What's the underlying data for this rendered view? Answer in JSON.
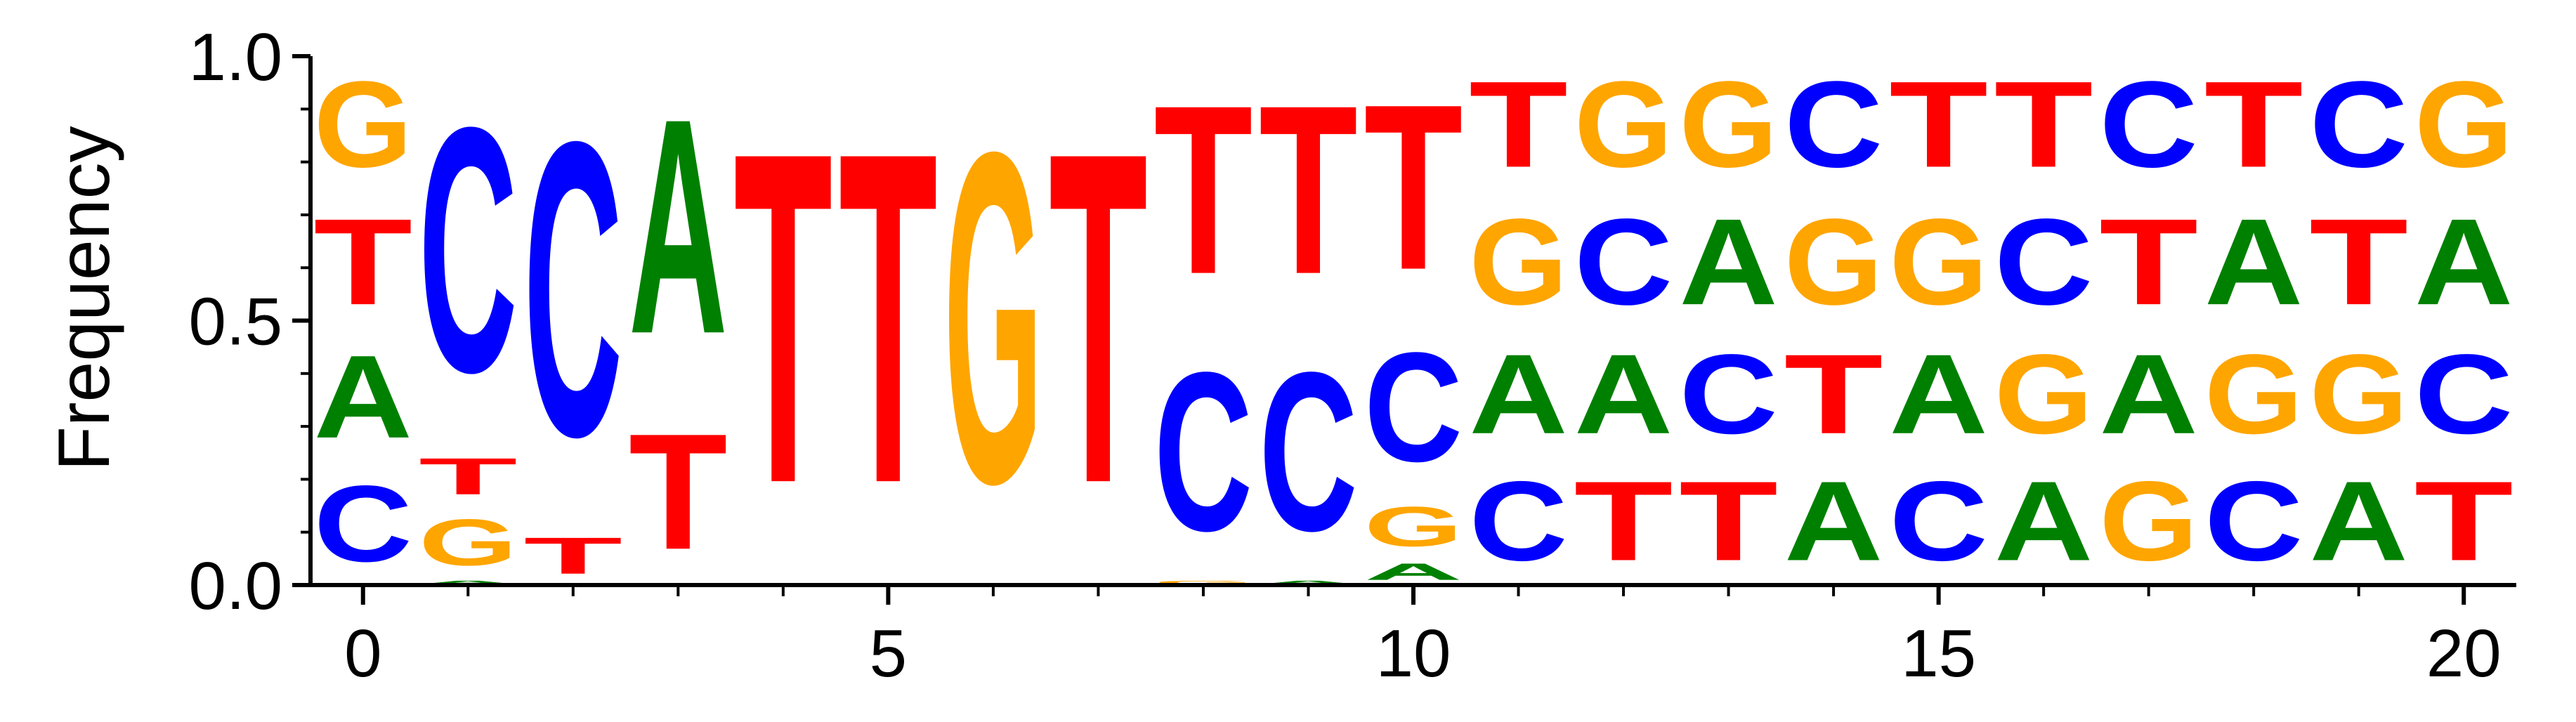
{
  "chart_data": {
    "type": "sequence-logo",
    "ylabel": "Frequency",
    "xlabel": "",
    "title": "",
    "ylim": [
      0,
      1
    ],
    "xlim": [
      -0.5,
      20.5
    ],
    "yticks": [
      "0.0",
      "0.5",
      "1.0"
    ],
    "xticks": [
      0,
      5,
      10,
      15,
      20
    ],
    "colors": {
      "A": "#008000",
      "C": "#0000ff",
      "G": "#ffa500",
      "T": "#ff0000"
    },
    "positions": [
      {
        "pos": 0,
        "stack": [
          [
            "C",
            0.23
          ],
          [
            "A",
            0.25
          ],
          [
            "T",
            0.26
          ],
          [
            "G",
            0.26
          ]
        ]
      },
      {
        "pos": 1,
        "stack": [
          [
            "A",
            0.01
          ],
          [
            "G",
            0.14
          ],
          [
            "T",
            0.11
          ],
          [
            "C",
            0.74
          ]
        ]
      },
      {
        "pos": 2,
        "stack": [
          [
            "T",
            0.11
          ],
          [
            "C",
            0.89
          ]
        ]
      },
      {
        "pos": 3,
        "stack": [
          [
            "T",
            0.35
          ],
          [
            "A",
            0.65
          ]
        ]
      },
      {
        "pos": 4,
        "stack": [
          [
            "T",
            1.0
          ]
        ]
      },
      {
        "pos": 5,
        "stack": [
          [
            "T",
            1.0
          ]
        ]
      },
      {
        "pos": 6,
        "stack": [
          [
            "G",
            1.0
          ]
        ]
      },
      {
        "pos": 7,
        "stack": [
          [
            "T",
            1.0
          ]
        ]
      },
      {
        "pos": 8,
        "stack": [
          [
            "G",
            0.01
          ],
          [
            "C",
            0.48
          ],
          [
            "T",
            0.51
          ]
        ]
      },
      {
        "pos": 9,
        "stack": [
          [
            "A",
            0.01
          ],
          [
            "C",
            0.48
          ],
          [
            "T",
            0.51
          ]
        ]
      },
      {
        "pos": 10,
        "stack": [
          [
            "A",
            0.05
          ],
          [
            "G",
            0.12
          ],
          [
            "C",
            0.33
          ],
          [
            "T",
            0.5
          ]
        ]
      },
      {
        "pos": 11,
        "stack": [
          [
            "C",
            0.24
          ],
          [
            "A",
            0.24
          ],
          [
            "G",
            0.26
          ],
          [
            "T",
            0.26
          ]
        ]
      },
      {
        "pos": 12,
        "stack": [
          [
            "T",
            0.24
          ],
          [
            "A",
            0.24
          ],
          [
            "C",
            0.26
          ],
          [
            "G",
            0.26
          ]
        ]
      },
      {
        "pos": 13,
        "stack": [
          [
            "T",
            0.24
          ],
          [
            "C",
            0.24
          ],
          [
            "A",
            0.26
          ],
          [
            "G",
            0.26
          ]
        ]
      },
      {
        "pos": 14,
        "stack": [
          [
            "A",
            0.24
          ],
          [
            "T",
            0.24
          ],
          [
            "G",
            0.26
          ],
          [
            "C",
            0.26
          ]
        ]
      },
      {
        "pos": 15,
        "stack": [
          [
            "C",
            0.24
          ],
          [
            "A",
            0.24
          ],
          [
            "G",
            0.26
          ],
          [
            "T",
            0.26
          ]
        ]
      },
      {
        "pos": 16,
        "stack": [
          [
            "A",
            0.24
          ],
          [
            "G",
            0.24
          ],
          [
            "C",
            0.26
          ],
          [
            "T",
            0.26
          ]
        ]
      },
      {
        "pos": 17,
        "stack": [
          [
            "G",
            0.24
          ],
          [
            "A",
            0.24
          ],
          [
            "T",
            0.26
          ],
          [
            "C",
            0.26
          ]
        ]
      },
      {
        "pos": 18,
        "stack": [
          [
            "C",
            0.24
          ],
          [
            "G",
            0.24
          ],
          [
            "A",
            0.26
          ],
          [
            "T",
            0.26
          ]
        ]
      },
      {
        "pos": 19,
        "stack": [
          [
            "A",
            0.24
          ],
          [
            "G",
            0.24
          ],
          [
            "T",
            0.26
          ],
          [
            "C",
            0.26
          ]
        ]
      },
      {
        "pos": 20,
        "stack": [
          [
            "T",
            0.24
          ],
          [
            "C",
            0.24
          ],
          [
            "A",
            0.26
          ],
          [
            "G",
            0.26
          ]
        ]
      }
    ]
  }
}
